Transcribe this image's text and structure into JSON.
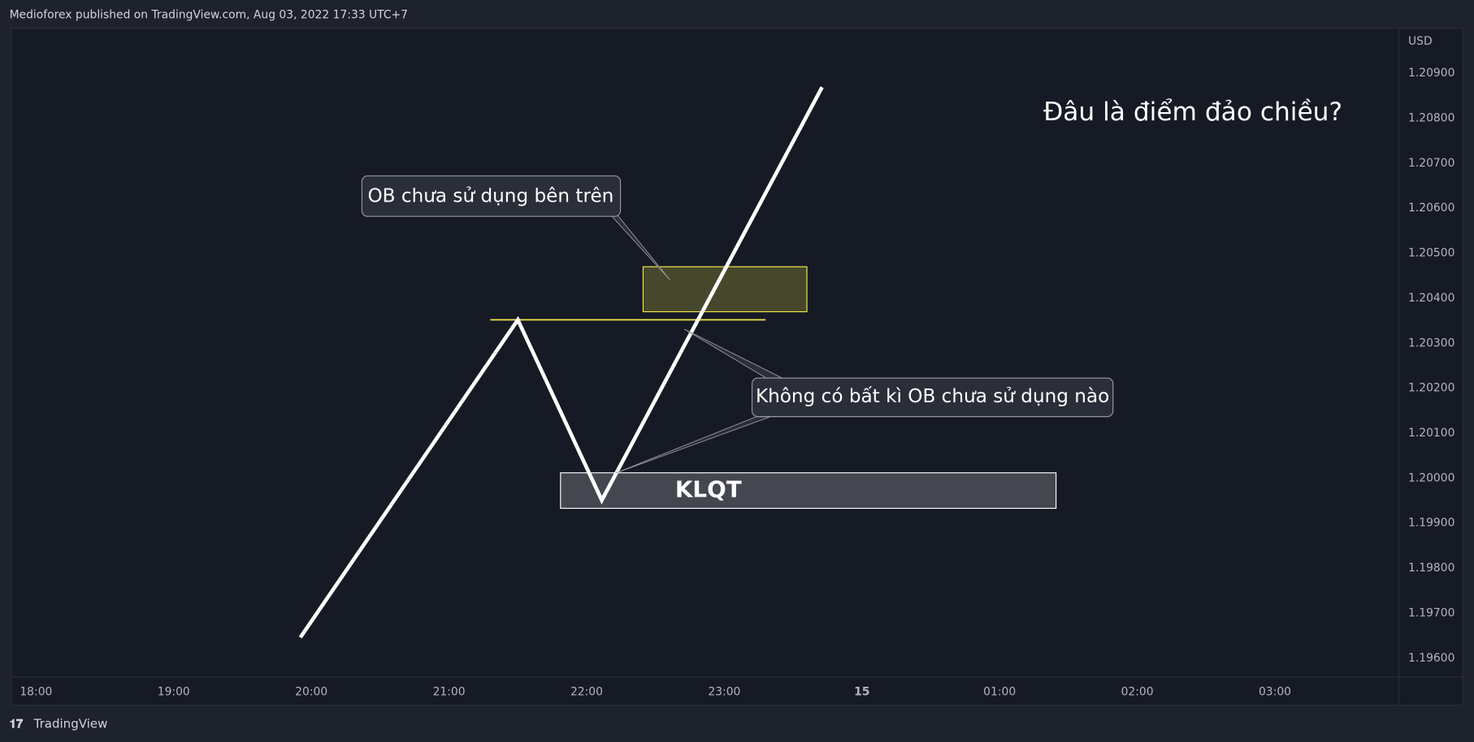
{
  "header": "Medioforex published on TradingView.com, Aug 03, 2022 17:33 UTC+7",
  "footer": "TradingView",
  "chart_data": {
    "type": "line",
    "title": "Đâu là điểm đảo chiều?",
    "y_axis_label": "USD",
    "x": [
      19.92,
      21.5,
      22.11,
      23.71
    ],
    "values": [
      1.19646,
      1.20352,
      1.19951,
      1.20869
    ],
    "color": "#ffffff",
    "xlim": [
      17.82,
      27.9
    ],
    "ylim": [
      1.19558,
      1.21
    ],
    "xticks": [
      {
        "value": 18,
        "label": "18:00"
      },
      {
        "value": 19,
        "label": "19:00"
      },
      {
        "value": 20,
        "label": "20:00"
      },
      {
        "value": 21,
        "label": "21:00"
      },
      {
        "value": 22,
        "label": "22:00"
      },
      {
        "value": 23,
        "label": "23:00"
      },
      {
        "value": 24,
        "label": "15"
      },
      {
        "value": 25,
        "label": "01:00"
      },
      {
        "value": 26,
        "label": "02:00"
      },
      {
        "value": 27,
        "label": "03:00"
      }
    ],
    "yticks": [
      {
        "value": 1.196,
        "label": "1.19600"
      },
      {
        "value": 1.197,
        "label": "1.19700"
      },
      {
        "value": 1.198,
        "label": "1.19800"
      },
      {
        "value": 1.199,
        "label": "1.19900"
      },
      {
        "value": 1.2,
        "label": "1.20000"
      },
      {
        "value": 1.201,
        "label": "1.20100"
      },
      {
        "value": 1.202,
        "label": "1.20200"
      },
      {
        "value": 1.203,
        "label": "1.20300"
      },
      {
        "value": 1.204,
        "label": "1.20400"
      },
      {
        "value": 1.205,
        "label": "1.20500"
      },
      {
        "value": 1.206,
        "label": "1.20600"
      },
      {
        "value": 1.207,
        "label": "1.20700"
      },
      {
        "value": 1.208,
        "label": "1.20800"
      },
      {
        "value": 1.209,
        "label": "1.20900"
      }
    ],
    "ob_zone": {
      "x": [
        22.41,
        23.6
      ],
      "y": [
        1.2037,
        1.2047
      ],
      "color": "#f5e94b"
    },
    "level": {
      "x": [
        21.3,
        23.3
      ],
      "y": 1.20352,
      "color": "#f5e94b"
    },
    "klqt_zone": {
      "label": "KLQT",
      "x": [
        21.81,
        25.41
      ],
      "y": [
        1.19933,
        1.20012
      ],
      "color": "#ffffff"
    },
    "annotations": [
      "OB chưa sử dụng bên trên",
      "Không có bất kì OB chưa sử dụng nào"
    ]
  }
}
